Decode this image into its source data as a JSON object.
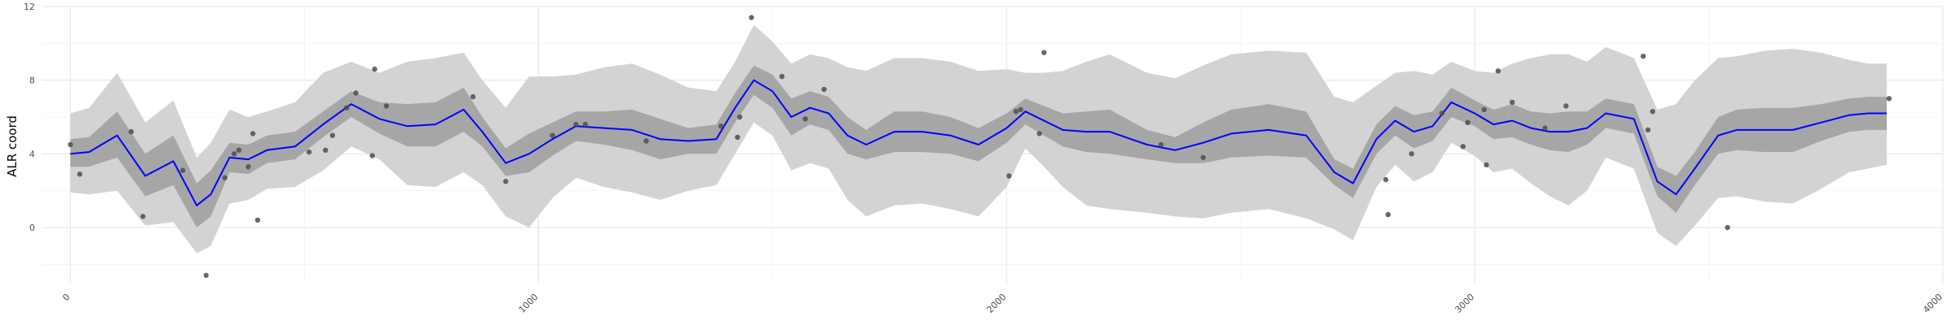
{
  "chart_data": {
    "type": "line",
    "xlabel": "",
    "ylabel": "ALR coord",
    "xlim": [
      -60,
      4000
    ],
    "ylim": [
      -3,
      12
    ],
    "x_ticks": [
      0,
      1000,
      2000,
      3000,
      4000
    ],
    "y_ticks": [
      0,
      4,
      8,
      12
    ],
    "grid": true,
    "colors": {
      "mean_line": "#0000ff",
      "inner_band": "#a6a6a6",
      "outer_band": "#d3d3d3",
      "points": "#4d4d4d"
    },
    "mean": {
      "x": [
        0,
        40,
        100,
        160,
        220,
        270,
        300,
        340,
        380,
        420,
        480,
        540,
        600,
        660,
        720,
        780,
        840,
        880,
        930,
        980,
        1030,
        1080,
        1140,
        1200,
        1260,
        1320,
        1380,
        1420,
        1460,
        1500,
        1540,
        1580,
        1620,
        1660,
        1700,
        1760,
        1820,
        1880,
        1940,
        2000,
        2040,
        2080,
        2120,
        2170,
        2220,
        2300,
        2360,
        2420,
        2480,
        2560,
        2640,
        2700,
        2740,
        2790,
        2830,
        2870,
        2910,
        2950,
        3000,
        3040,
        3080,
        3120,
        3160,
        3200,
        3240,
        3280,
        3340,
        3390,
        3430,
        3470,
        3520,
        3560,
        3620,
        3680,
        3740,
        3800,
        3840,
        3880
      ],
      "y": [
        4.0,
        4.1,
        5.0,
        2.8,
        3.6,
        1.2,
        1.8,
        3.8,
        3.7,
        4.2,
        4.4,
        5.6,
        6.7,
        5.9,
        5.5,
        5.6,
        6.4,
        5.2,
        3.5,
        4.0,
        4.8,
        5.5,
        5.4,
        5.3,
        4.8,
        4.7,
        4.8,
        6.5,
        8.0,
        7.4,
        6.0,
        6.5,
        6.2,
        5.0,
        4.5,
        5.2,
        5.2,
        5.0,
        4.5,
        5.4,
        6.3,
        5.8,
        5.3,
        5.2,
        5.2,
        4.5,
        4.2,
        4.6,
        5.1,
        5.3,
        5.0,
        3.0,
        2.4,
        4.8,
        5.8,
        5.2,
        5.5,
        6.8,
        6.2,
        5.6,
        5.8,
        5.4,
        5.2,
        5.2,
        5.4,
        6.2,
        5.9,
        2.5,
        1.8,
        3.2,
        5.0,
        5.3,
        5.3,
        5.3,
        5.7,
        6.1,
        6.2,
        6.2
      ]
    },
    "inner_band": {
      "x": [
        0,
        40,
        100,
        160,
        220,
        270,
        300,
        340,
        380,
        420,
        480,
        540,
        600,
        660,
        720,
        780,
        840,
        880,
        930,
        980,
        1030,
        1080,
        1140,
        1200,
        1260,
        1320,
        1380,
        1420,
        1460,
        1500,
        1540,
        1580,
        1620,
        1660,
        1700,
        1760,
        1820,
        1880,
        1940,
        2000,
        2040,
        2080,
        2120,
        2170,
        2220,
        2300,
        2360,
        2420,
        2480,
        2560,
        2640,
        2700,
        2740,
        2790,
        2830,
        2870,
        2910,
        2950,
        3000,
        3040,
        3080,
        3120,
        3160,
        3200,
        3240,
        3280,
        3340,
        3390,
        3430,
        3470,
        3520,
        3560,
        3620,
        3680,
        3740,
        3800,
        3840,
        3880
      ],
      "lower": [
        3.3,
        3.3,
        3.8,
        1.7,
        2.3,
        0.0,
        0.6,
        3.0,
        2.9,
        3.5,
        3.7,
        4.9,
        6.0,
        5.1,
        4.4,
        4.4,
        5.2,
        4.4,
        2.8,
        3.0,
        3.9,
        4.7,
        4.5,
        4.2,
        3.7,
        4.0,
        4.0,
        5.7,
        7.2,
        6.5,
        5.0,
        5.6,
        5.3,
        4.0,
        3.7,
        4.1,
        4.1,
        4.0,
        3.6,
        4.6,
        5.6,
        5.0,
        4.4,
        4.1,
        4.0,
        3.7,
        3.5,
        3.5,
        3.8,
        3.9,
        3.8,
        2.3,
        1.6,
        4.0,
        5.0,
        4.3,
        4.7,
        6.0,
        5.5,
        4.8,
        4.9,
        4.5,
        4.2,
        4.1,
        4.5,
        5.4,
        5.1,
        1.7,
        0.8,
        2.3,
        4.0,
        4.2,
        4.1,
        4.1,
        4.7,
        5.2,
        5.3,
        5.3
      ],
      "upper": [
        4.8,
        4.9,
        6.3,
        4.0,
        5.0,
        2.4,
        3.1,
        4.6,
        4.5,
        5.0,
        5.2,
        6.3,
        7.4,
        6.8,
        6.7,
        6.8,
        7.6,
        6.0,
        4.3,
        5.1,
        5.7,
        6.3,
        6.3,
        6.4,
        5.9,
        5.4,
        5.6,
        7.3,
        8.8,
        8.3,
        7.0,
        7.4,
        7.1,
        6.0,
        5.3,
        6.3,
        6.3,
        6.0,
        5.4,
        6.2,
        7.0,
        6.6,
        6.2,
        6.3,
        6.4,
        5.3,
        4.9,
        5.7,
        6.4,
        6.7,
        6.3,
        3.7,
        3.2,
        5.6,
        6.6,
        6.1,
        6.3,
        7.6,
        6.9,
        6.4,
        6.7,
        6.3,
        6.2,
        6.3,
        6.3,
        7.0,
        6.7,
        3.3,
        2.8,
        4.1,
        6.0,
        6.4,
        6.5,
        6.5,
        6.7,
        7.0,
        7.1,
        7.1
      ]
    },
    "outer_band": {
      "x": [
        0,
        40,
        100,
        160,
        220,
        270,
        300,
        340,
        380,
        420,
        480,
        540,
        600,
        660,
        720,
        780,
        840,
        880,
        930,
        980,
        1030,
        1080,
        1140,
        1200,
        1260,
        1320,
        1380,
        1420,
        1460,
        1500,
        1540,
        1580,
        1620,
        1660,
        1700,
        1760,
        1820,
        1880,
        1940,
        2000,
        2040,
        2080,
        2120,
        2170,
        2220,
        2300,
        2360,
        2420,
        2480,
        2560,
        2640,
        2700,
        2740,
        2790,
        2830,
        2870,
        2910,
        2950,
        3000,
        3040,
        3080,
        3120,
        3160,
        3200,
        3240,
        3280,
        3340,
        3390,
        3430,
        3470,
        3520,
        3560,
        3620,
        3680,
        3740,
        3800,
        3840,
        3880
      ],
      "lower": [
        1.9,
        1.8,
        2.0,
        0.1,
        0.3,
        -1.4,
        -1.0,
        1.3,
        1.5,
        2.1,
        2.2,
        3.1,
        4.4,
        3.7,
        2.3,
        2.2,
        3.0,
        2.3,
        0.6,
        0.0,
        1.6,
        2.7,
        2.2,
        1.9,
        1.5,
        2.0,
        2.3,
        4.0,
        5.7,
        5.0,
        3.1,
        3.5,
        3.2,
        1.5,
        0.6,
        1.2,
        1.3,
        1.0,
        0.6,
        2.2,
        4.3,
        3.3,
        2.2,
        1.2,
        1.0,
        0.8,
        0.6,
        0.5,
        0.8,
        1.0,
        0.5,
        -0.1,
        -0.7,
        2.2,
        3.4,
        2.5,
        3.0,
        4.6,
        3.9,
        3.0,
        3.2,
        2.4,
        1.7,
        1.2,
        2.0,
        3.8,
        3.2,
        -0.3,
        -1.0,
        0.1,
        1.6,
        1.7,
        1.4,
        1.3,
        2.1,
        3.0,
        3.2,
        3.4
      ],
      "upper": [
        6.2,
        6.5,
        8.4,
        5.7,
        6.9,
        3.8,
        4.6,
        6.4,
        6.0,
        6.3,
        6.8,
        8.4,
        9.0,
        8.4,
        9.0,
        9.2,
        9.5,
        8.0,
        6.5,
        8.2,
        8.2,
        8.3,
        8.7,
        8.9,
        8.3,
        7.6,
        7.4,
        9.0,
        11.0,
        10.1,
        8.9,
        9.4,
        9.2,
        8.7,
        8.5,
        9.2,
        9.2,
        9.0,
        8.5,
        8.6,
        8.4,
        8.4,
        8.5,
        9.0,
        9.4,
        8.4,
        8.1,
        8.8,
        9.4,
        9.6,
        9.5,
        7.1,
        6.8,
        7.7,
        8.4,
        8.5,
        8.3,
        9.0,
        8.5,
        8.4,
        8.9,
        9.2,
        9.4,
        9.4,
        9.0,
        9.8,
        9.2,
        6.4,
        6.7,
        8.0,
        9.2,
        9.3,
        9.6,
        9.7,
        9.5,
        9.1,
        8.9,
        8.9
      ]
    },
    "points": {
      "x": [
        0,
        20,
        130,
        155,
        240,
        290,
        330,
        350,
        360,
        380,
        390,
        400,
        510,
        545,
        560,
        590,
        610,
        645,
        650,
        675,
        860,
        930,
        1030,
        1080,
        1100,
        1230,
        1390,
        1425,
        1430,
        1455,
        1520,
        1570,
        1610,
        2005,
        2020,
        2030,
        2070,
        2080,
        2330,
        2420,
        2810,
        2815,
        2865,
        2930,
        2975,
        2985,
        3020,
        3025,
        3050,
        3080,
        3150,
        3195,
        3360,
        3370,
        3380,
        3540,
        3885
      ],
      "y": [
        4.5,
        2.9,
        5.2,
        0.6,
        3.1,
        -2.6,
        2.7,
        4.0,
        4.2,
        3.3,
        5.1,
        0.4,
        4.1,
        4.2,
        5.0,
        6.5,
        7.3,
        3.9,
        8.6,
        6.6,
        7.1,
        2.5,
        5.0,
        5.6,
        5.6,
        4.7,
        5.5,
        4.9,
        6.0,
        11.4,
        8.2,
        5.9,
        7.5,
        2.8,
        6.3,
        6.4,
        5.1,
        9.5,
        4.5,
        3.8,
        2.6,
        0.7,
        4.0,
        6.2,
        4.4,
        5.7,
        6.4,
        3.4,
        8.5,
        6.8,
        5.4,
        6.6,
        9.3,
        5.3,
        6.3,
        0.0,
        7.0
      ]
    }
  }
}
